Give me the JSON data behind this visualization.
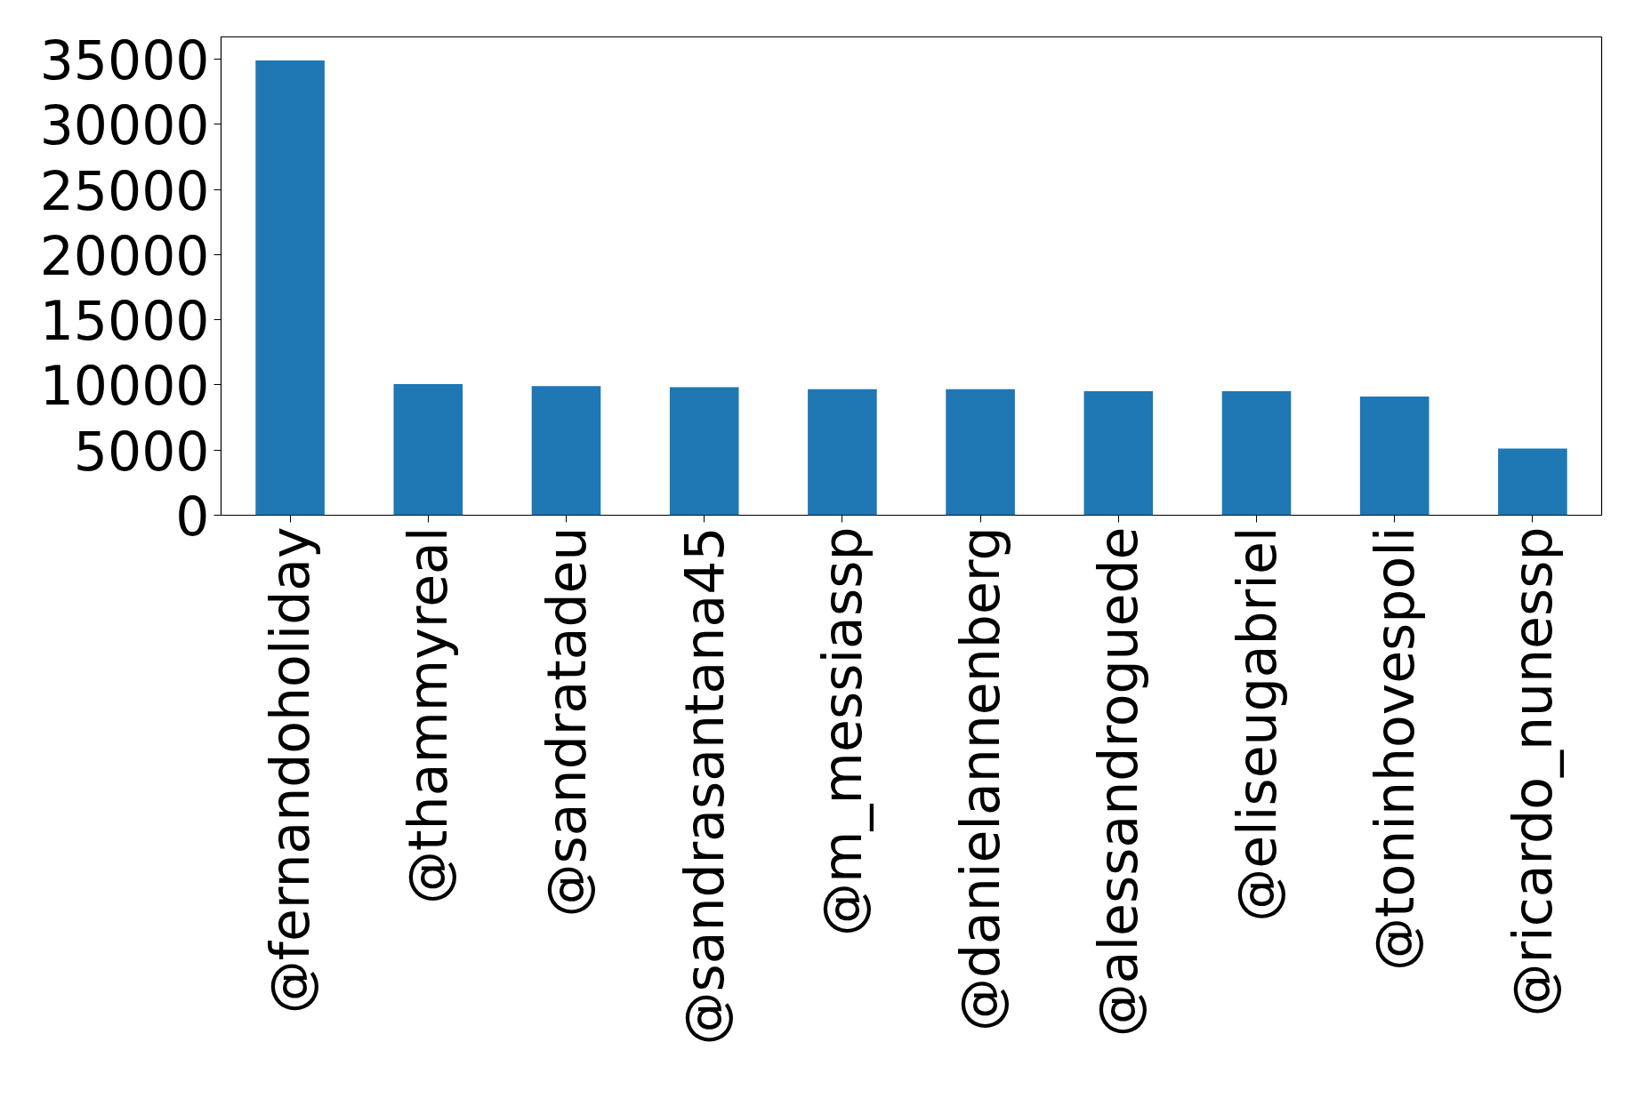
{
  "chart_data": {
    "type": "bar",
    "categories": [
      "@fernandoholiday",
      "@thammyreal",
      "@sandratadeu",
      "@sandrasantana45",
      "@m_messiassp",
      "@danielannenberg",
      "@alessandroguede",
      "@eliseugabriel",
      "@toninhovespoli",
      "@ricardo_nunessp"
    ],
    "values": [
      34900,
      10070,
      9910,
      9830,
      9670,
      9670,
      9510,
      9510,
      9110,
      5110
    ],
    "color": "#1f77b4",
    "ylim": [
      0,
      36700
    ],
    "yticks": [
      0,
      5000,
      10000,
      15000,
      20000,
      25000,
      30000,
      35000
    ],
    "grid": false
  }
}
